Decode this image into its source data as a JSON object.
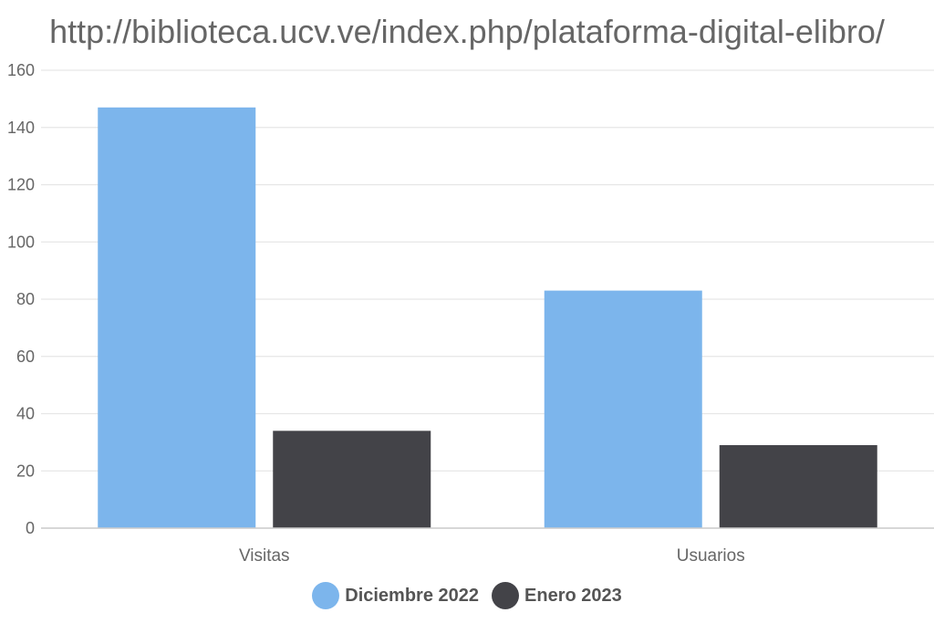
{
  "chart_data": {
    "type": "bar",
    "title": "http://biblioteca.ucv.ve/index.php/plataforma-digital-elibro/",
    "categories": [
      "Visitas",
      "Usuarios"
    ],
    "series": [
      {
        "name": "Diciembre 2022",
        "values": [
          147,
          83
        ],
        "color": "#7cb5ec"
      },
      {
        "name": "Enero 2023",
        "values": [
          34,
          29
        ],
        "color": "#434348"
      }
    ],
    "ylim": [
      0,
      160
    ],
    "yticks": [
      0,
      20,
      40,
      60,
      80,
      100,
      120,
      140,
      160
    ],
    "grid": true,
    "legend": "bottom-center",
    "xlabel": "",
    "ylabel": ""
  }
}
